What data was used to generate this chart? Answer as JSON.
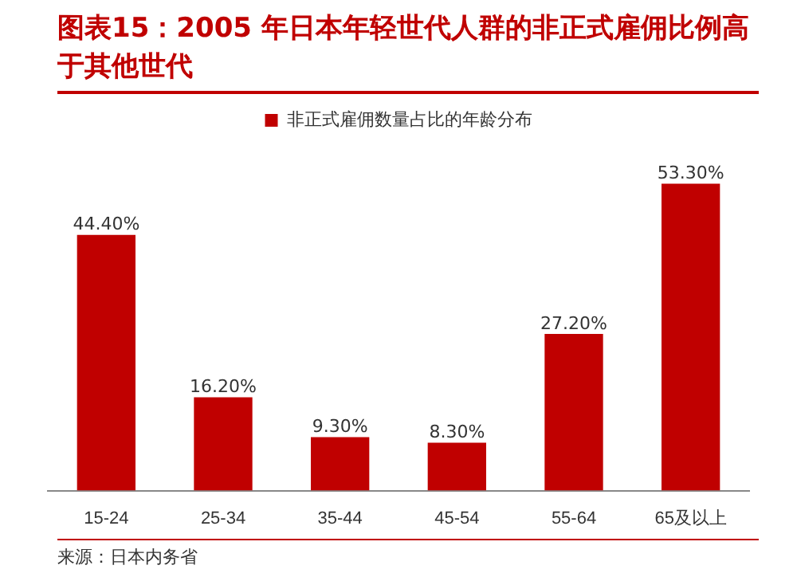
{
  "chart_data": {
    "type": "bar",
    "title": "图表15：2005 年日本年轻世代人群的非正式雇佣比例高于其他世代",
    "categories": [
      "15-24",
      "25-34",
      "35-44",
      "45-54",
      "55-64",
      "65及以上"
    ],
    "series": [
      {
        "name": "非正式雇佣数量占比的年龄分布",
        "color": "#c00000",
        "values": [
          44.4,
          16.2,
          9.3,
          8.3,
          27.2,
          53.3
        ],
        "value_labels": [
          "44.40%",
          "16.20%",
          "9.30%",
          "8.30%",
          "27.20%",
          "53.30%"
        ]
      }
    ],
    "legend": "top",
    "grid": false,
    "annotations": [
      "来源：日本内务省"
    ]
  }
}
